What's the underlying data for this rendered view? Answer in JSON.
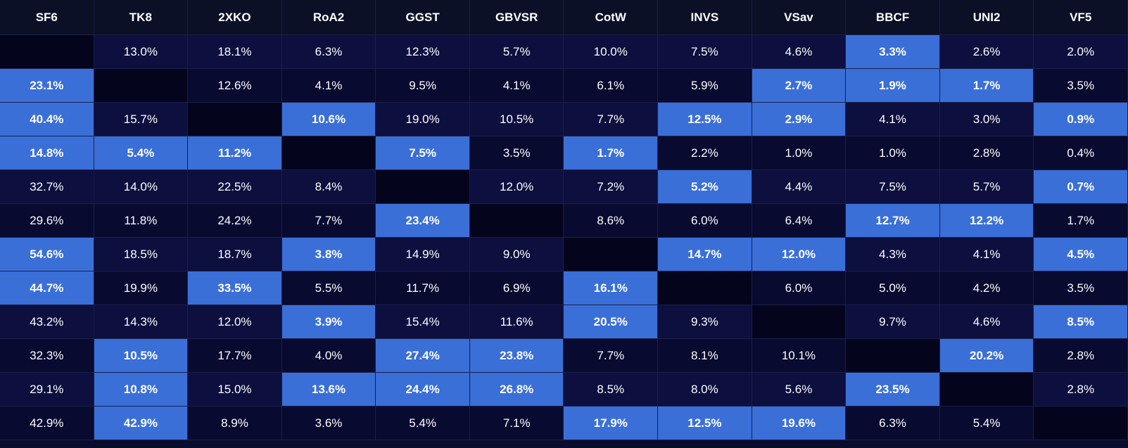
{
  "table": {
    "columns": [
      "SF6",
      "TK8",
      "2XKO",
      "RoA2",
      "GGST",
      "GBVSR",
      "CotW",
      "INVS",
      "VSav",
      "BBCF",
      "UNI2",
      "VF5"
    ],
    "rows": [
      [
        null,
        "13.0%",
        "18.1%",
        "6.3%",
        "12.3%",
        "5.7%",
        "10.0%",
        "7.5%",
        "4.6%",
        "3.3%",
        "2.6%",
        "2.0%"
      ],
      [
        "23.1%",
        null,
        "12.6%",
        "4.1%",
        "9.5%",
        "4.1%",
        "6.1%",
        "5.9%",
        "2.7%",
        "1.9%",
        "1.7%",
        "3.5%"
      ],
      [
        "40.4%",
        "15.7%",
        null,
        "10.6%",
        "19.0%",
        "10.5%",
        "7.7%",
        "12.5%",
        "2.9%",
        "4.1%",
        "3.0%",
        "0.9%"
      ],
      [
        "14.8%",
        "5.4%",
        "11.2%",
        null,
        "7.5%",
        "3.5%",
        "1.7%",
        "2.2%",
        "1.0%",
        "1.0%",
        "2.8%",
        "0.4%"
      ],
      [
        "32.7%",
        "14.0%",
        "22.5%",
        "8.4%",
        null,
        "12.0%",
        "7.2%",
        "5.2%",
        "4.4%",
        "7.5%",
        "5.7%",
        "0.7%"
      ],
      [
        "29.6%",
        "11.8%",
        "24.2%",
        "7.7%",
        "23.4%",
        null,
        "8.6%",
        "6.0%",
        "6.4%",
        "12.7%",
        "12.2%",
        "1.7%"
      ],
      [
        "54.6%",
        "18.5%",
        "18.7%",
        "3.8%",
        "14.9%",
        "9.0%",
        null,
        "14.7%",
        "12.0%",
        "4.3%",
        "4.1%",
        "4.5%"
      ],
      [
        "44.7%",
        "19.9%",
        "33.5%",
        "5.5%",
        "11.7%",
        "6.9%",
        "16.1%",
        null,
        "6.0%",
        "5.0%",
        "4.2%",
        "3.5%"
      ],
      [
        "43.2%",
        "14.3%",
        "12.0%",
        "3.9%",
        "15.4%",
        "11.6%",
        "20.5%",
        "9.3%",
        null,
        "9.7%",
        "4.6%",
        "8.5%"
      ],
      [
        "32.3%",
        "10.5%",
        "17.7%",
        "4.0%",
        "27.4%",
        "23.8%",
        "7.7%",
        "8.1%",
        "10.1%",
        null,
        "20.2%",
        "2.8%"
      ],
      [
        "29.1%",
        "10.8%",
        "15.0%",
        "13.6%",
        "24.4%",
        "26.8%",
        "8.5%",
        "8.0%",
        "5.6%",
        "23.5%",
        null,
        "2.8%"
      ],
      [
        "42.9%",
        "42.9%",
        "8.9%",
        "3.6%",
        "5.4%",
        "7.1%",
        "17.9%",
        "12.5%",
        "19.6%",
        "6.3%",
        "5.4%",
        null
      ]
    ],
    "highlighted": [
      [
        9
      ],
      [
        0,
        8,
        9,
        10
      ],
      [
        0,
        3,
        7,
        8,
        11
      ],
      [
        0,
        1,
        2,
        4,
        6
      ],
      [
        7,
        11
      ],
      [
        4,
        9,
        10
      ],
      [
        0,
        3,
        7,
        8,
        11
      ],
      [
        0,
        2,
        6
      ],
      [
        3,
        6,
        11
      ],
      [
        1,
        4,
        5,
        10
      ],
      [
        1,
        3,
        4,
        5,
        9
      ],
      [
        1,
        6,
        7,
        8
      ]
    ]
  }
}
